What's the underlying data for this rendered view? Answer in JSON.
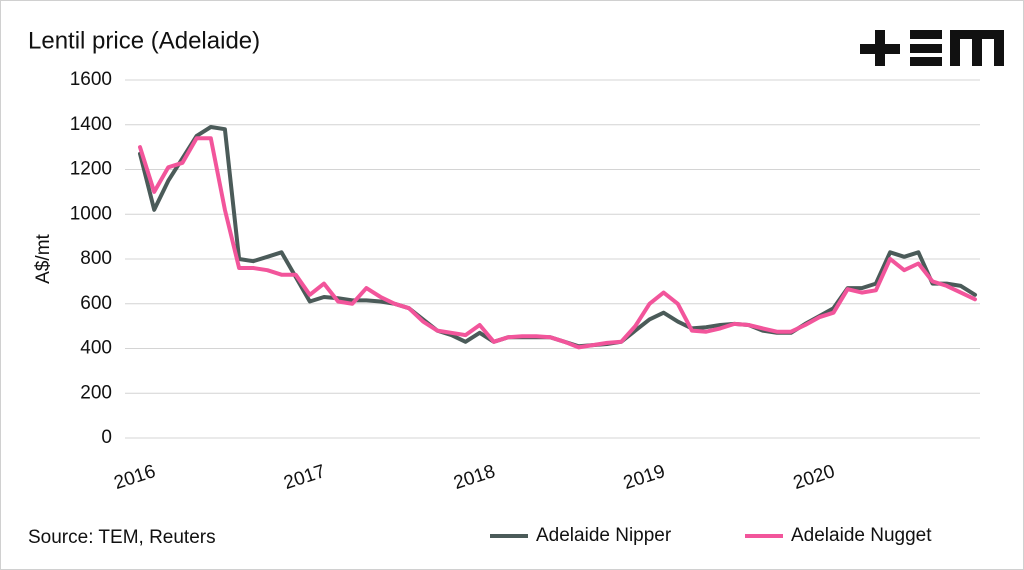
{
  "chart_data": {
    "type": "line",
    "title": "Lentil price (Adelaide)",
    "y_label": "A$/mt",
    "source": "Source: TEM, Reuters",
    "categories": [
      "2016",
      null,
      null,
      null,
      null,
      null,
      null,
      null,
      null,
      null,
      null,
      null,
      "2017",
      null,
      null,
      null,
      null,
      null,
      null,
      null,
      null,
      null,
      null,
      null,
      "2018",
      null,
      null,
      null,
      null,
      null,
      null,
      null,
      null,
      null,
      null,
      null,
      "2019",
      null,
      null,
      null,
      null,
      null,
      null,
      null,
      null,
      null,
      null,
      null,
      "2020",
      null,
      null,
      null,
      null,
      null,
      null,
      null,
      null,
      null,
      null,
      null
    ],
    "series": [
      {
        "name": "Adelaide Nipper",
        "color": "#4b5b59",
        "values": [
          1270,
          1020,
          1150,
          1250,
          1350,
          1390,
          1380,
          800,
          790,
          810,
          830,
          720,
          610,
          630,
          625,
          615,
          615,
          610,
          600,
          580,
          530,
          480,
          460,
          430,
          470,
          430,
          450,
          450,
          450,
          450,
          430,
          410,
          415,
          420,
          430,
          480,
          530,
          560,
          520,
          490,
          495,
          505,
          510,
          505,
          480,
          470,
          470,
          510,
          545,
          580,
          670,
          670,
          690,
          830,
          810,
          830,
          690,
          690,
          680,
          640
        ]
      },
      {
        "name": "Adelaide Nugget",
        "color": "#f2559b",
        "values": [
          1300,
          1100,
          1210,
          1230,
          1340,
          1340,
          1020,
          760,
          760,
          750,
          730,
          730,
          640,
          690,
          610,
          600,
          670,
          630,
          600,
          580,
          520,
          480,
          470,
          460,
          505,
          430,
          450,
          455,
          455,
          450,
          430,
          405,
          415,
          425,
          430,
          500,
          600,
          650,
          600,
          480,
          475,
          490,
          510,
          505,
          490,
          475,
          475,
          505,
          540,
          560,
          665,
          650,
          660,
          800,
          750,
          780,
          700,
          680,
          650,
          620
        ]
      }
    ],
    "ylim": [
      0,
      1600
    ],
    "yticks": [
      0,
      200,
      400,
      600,
      800,
      1000,
      1200,
      1400,
      1600
    ],
    "grid": true
  }
}
